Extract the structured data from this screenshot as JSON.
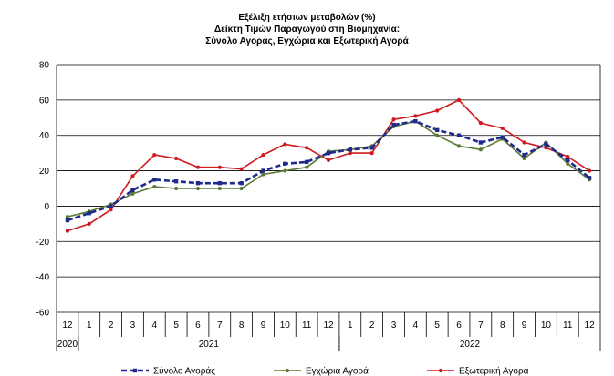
{
  "chart_data": {
    "type": "line",
    "title": [
      "Εξέλιξη ετήσιων μεταβολών (%)",
      "Δείκτη Τιμών Παραγωγού στη Βιομηχανία:",
      "Σύνολο Αγοράς, Εγχώρια και Εξωτερική Αγορά"
    ],
    "xlabel": "",
    "ylabel": "",
    "ylim": [
      -60,
      80
    ],
    "yticks": [
      "80",
      "60",
      "40",
      "20",
      "0",
      "-20",
      "-40",
      "-60"
    ],
    "categories": [
      "12",
      "1",
      "2",
      "3",
      "4",
      "5",
      "6",
      "7",
      "8",
      "9",
      "10",
      "11",
      "12",
      "1",
      "2",
      "3",
      "4",
      "5",
      "6",
      "7",
      "8",
      "9",
      "10",
      "11",
      "12"
    ],
    "year_groups": [
      {
        "label": "2020",
        "start": 0,
        "end": 0
      },
      {
        "label": "2021",
        "start": 1,
        "end": 12
      },
      {
        "label": "2022",
        "start": 13,
        "end": 24
      }
    ],
    "grid": true,
    "legend_position": "bottom",
    "series": [
      {
        "name": "Σύνολο Αγοράς",
        "color": "#1f2a8c",
        "style": "dashed",
        "marker": "square",
        "values": [
          -8,
          -4,
          0,
          9,
          15,
          14,
          13,
          13,
          13,
          20,
          24,
          25,
          30,
          32,
          33,
          46,
          48,
          43,
          40,
          36,
          39,
          29,
          35,
          26,
          16
        ]
      },
      {
        "name": "Εγχώρια Αγορά",
        "color": "#5c7a35",
        "style": "solid",
        "marker": "circle",
        "values": [
          -6,
          -3,
          1,
          7,
          11,
          10,
          10,
          10,
          10,
          18,
          20,
          22,
          31,
          32,
          34,
          45,
          48,
          40,
          34,
          32,
          38,
          27,
          36,
          24,
          15
        ]
      },
      {
        "name": "Εξωτερική Αγορά",
        "color": "#d0191f",
        "style": "solid",
        "marker": "circle",
        "values": [
          -14,
          -10,
          -2,
          17,
          29,
          27,
          22,
          22,
          21,
          29,
          35,
          33,
          26,
          30,
          30,
          49,
          51,
          54,
          60,
          47,
          44,
          36,
          33,
          28,
          20
        ]
      }
    ]
  }
}
